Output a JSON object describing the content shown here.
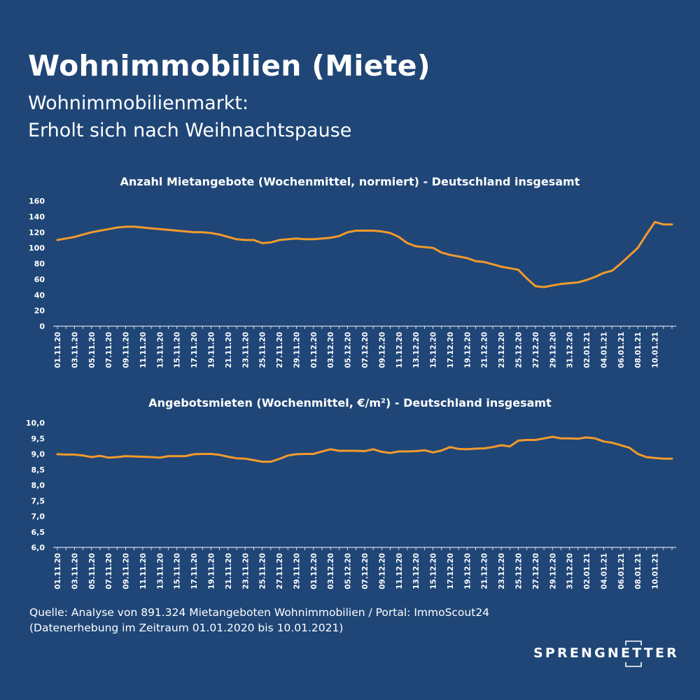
{
  "header": {
    "title": "Wohnimmobilien (Miete)",
    "subtitle_line1": "Wohnimmobilienmarkt:",
    "subtitle_line2": "Erholt sich nach Weihnachtspause"
  },
  "colors": {
    "background": "#1f4677",
    "line": "#f39a2b",
    "text": "#ffffff"
  },
  "chart_data": [
    {
      "type": "line",
      "title": "Anzahl Mietangebote (Wochenmittel, normiert) - Deutschland insgesamt",
      "xlabel": "",
      "ylabel": "",
      "ylim": [
        0,
        160
      ],
      "yticks": [
        0,
        20,
        40,
        60,
        80,
        100,
        120,
        140,
        160
      ],
      "ytick_labels": [
        "0",
        "20",
        "40",
        "60",
        "80",
        "100",
        "120",
        "140",
        "160"
      ],
      "grid": false,
      "legend": "none",
      "x_labels": [
        "01.11.20",
        "03.11.20",
        "05.11.20",
        "07.11.20",
        "09.11.20",
        "11.11.20",
        "13.11.20",
        "15.11.20",
        "17.11.20",
        "19.11.20",
        "21.11.20",
        "23.11.20",
        "25.11.20",
        "27.11.20",
        "29.11.20",
        "01.12.20",
        "03.12.20",
        "05.12.20",
        "07.12.20",
        "09.12.20",
        "11.12.20",
        "13.12.20",
        "15.12.20",
        "17.12.20",
        "19.12.20",
        "21.12.20",
        "23.12.20",
        "25.12.20",
        "27.12.20",
        "29.12.20",
        "31.12.20",
        "02.01.21",
        "04.01.21",
        "06.01.21",
        "08.01.21",
        "10.01.21"
      ],
      "series": [
        {
          "values": [
            110,
            112,
            114,
            117,
            120,
            122,
            124,
            126,
            127,
            127,
            126,
            125,
            124,
            123,
            122,
            121,
            120,
            120,
            119,
            117,
            114,
            111,
            110,
            110,
            106,
            107,
            110,
            111,
            112,
            111,
            111,
            112,
            113,
            115,
            120,
            122,
            122,
            122,
            121,
            119,
            114,
            106,
            102,
            101,
            100,
            94,
            91,
            89,
            87,
            83,
            82,
            79,
            76,
            74,
            72,
            61,
            51,
            50,
            52,
            54,
            55,
            56,
            59,
            63,
            68,
            71,
            80,
            90,
            100,
            117,
            133,
            130,
            130
          ]
        }
      ]
    },
    {
      "type": "line",
      "title": "Angebotsmieten (Wochenmittel, €/m²) - Deutschland insgesamt",
      "xlabel": "",
      "ylabel": "",
      "ylim": [
        6.0,
        10.0
      ],
      "yticks": [
        6.0,
        6.5,
        7.0,
        7.5,
        8.0,
        8.5,
        9.0,
        9.5,
        10.0
      ],
      "ytick_labels": [
        "6,0",
        "6,5",
        "7,0",
        "7,5",
        "8,0",
        "8,5",
        "9,0",
        "9,5",
        "10,0"
      ],
      "grid": false,
      "legend": "none",
      "x_labels": [
        "01.11.20",
        "03.11.20",
        "05.11.20",
        "07.11.20",
        "09.11.20",
        "11.11.20",
        "13.11.20",
        "15.11.20",
        "17.11.20",
        "19.11.20",
        "21.11.20",
        "23.11.20",
        "25.11.20",
        "27.11.20",
        "29.11.20",
        "01.12.20",
        "03.12.20",
        "05.12.20",
        "07.12.20",
        "09.12.20",
        "11.12.20",
        "13.12.20",
        "15.12.20",
        "17.12.20",
        "19.12.20",
        "21.12.20",
        "23.12.20",
        "25.12.20",
        "27.12.20",
        "29.12.20",
        "31.12.20",
        "02.01.21",
        "04.01.21",
        "06.01.21",
        "08.01.21",
        "10.01.21"
      ],
      "series": [
        {
          "values": [
            8.99,
            8.98,
            8.98,
            8.95,
            8.9,
            8.94,
            8.88,
            8.9,
            8.93,
            8.92,
            8.91,
            8.9,
            8.88,
            8.93,
            8.93,
            8.93,
            8.99,
            9.0,
            9.0,
            8.97,
            8.91,
            8.86,
            8.85,
            8.8,
            8.75,
            8.75,
            8.84,
            8.95,
            8.99,
            9.0,
            9.0,
            9.08,
            9.15,
            9.1,
            9.1,
            9.1,
            9.09,
            9.15,
            9.07,
            9.03,
            9.08,
            9.08,
            9.09,
            9.12,
            9.05,
            9.11,
            9.22,
            9.16,
            9.15,
            9.17,
            9.18,
            9.22,
            9.28,
            9.24,
            9.43,
            9.45,
            9.45,
            9.5,
            9.55,
            9.5,
            9.5,
            9.49,
            9.53,
            9.5,
            9.4,
            9.36,
            9.28,
            9.2,
            9.0,
            8.9,
            8.87,
            8.85,
            8.85
          ]
        }
      ]
    }
  ],
  "footer": {
    "source_line1": "Quelle: Analyse von 891.324  Mietangeboten Wohnimmobilien / Portal: ImmoScout24",
    "source_line2": "(Datenerhebung im Zeitraum 01.01.2020 bis  10.01.2021)"
  },
  "logo": {
    "text": "SPRENGNETTER"
  }
}
